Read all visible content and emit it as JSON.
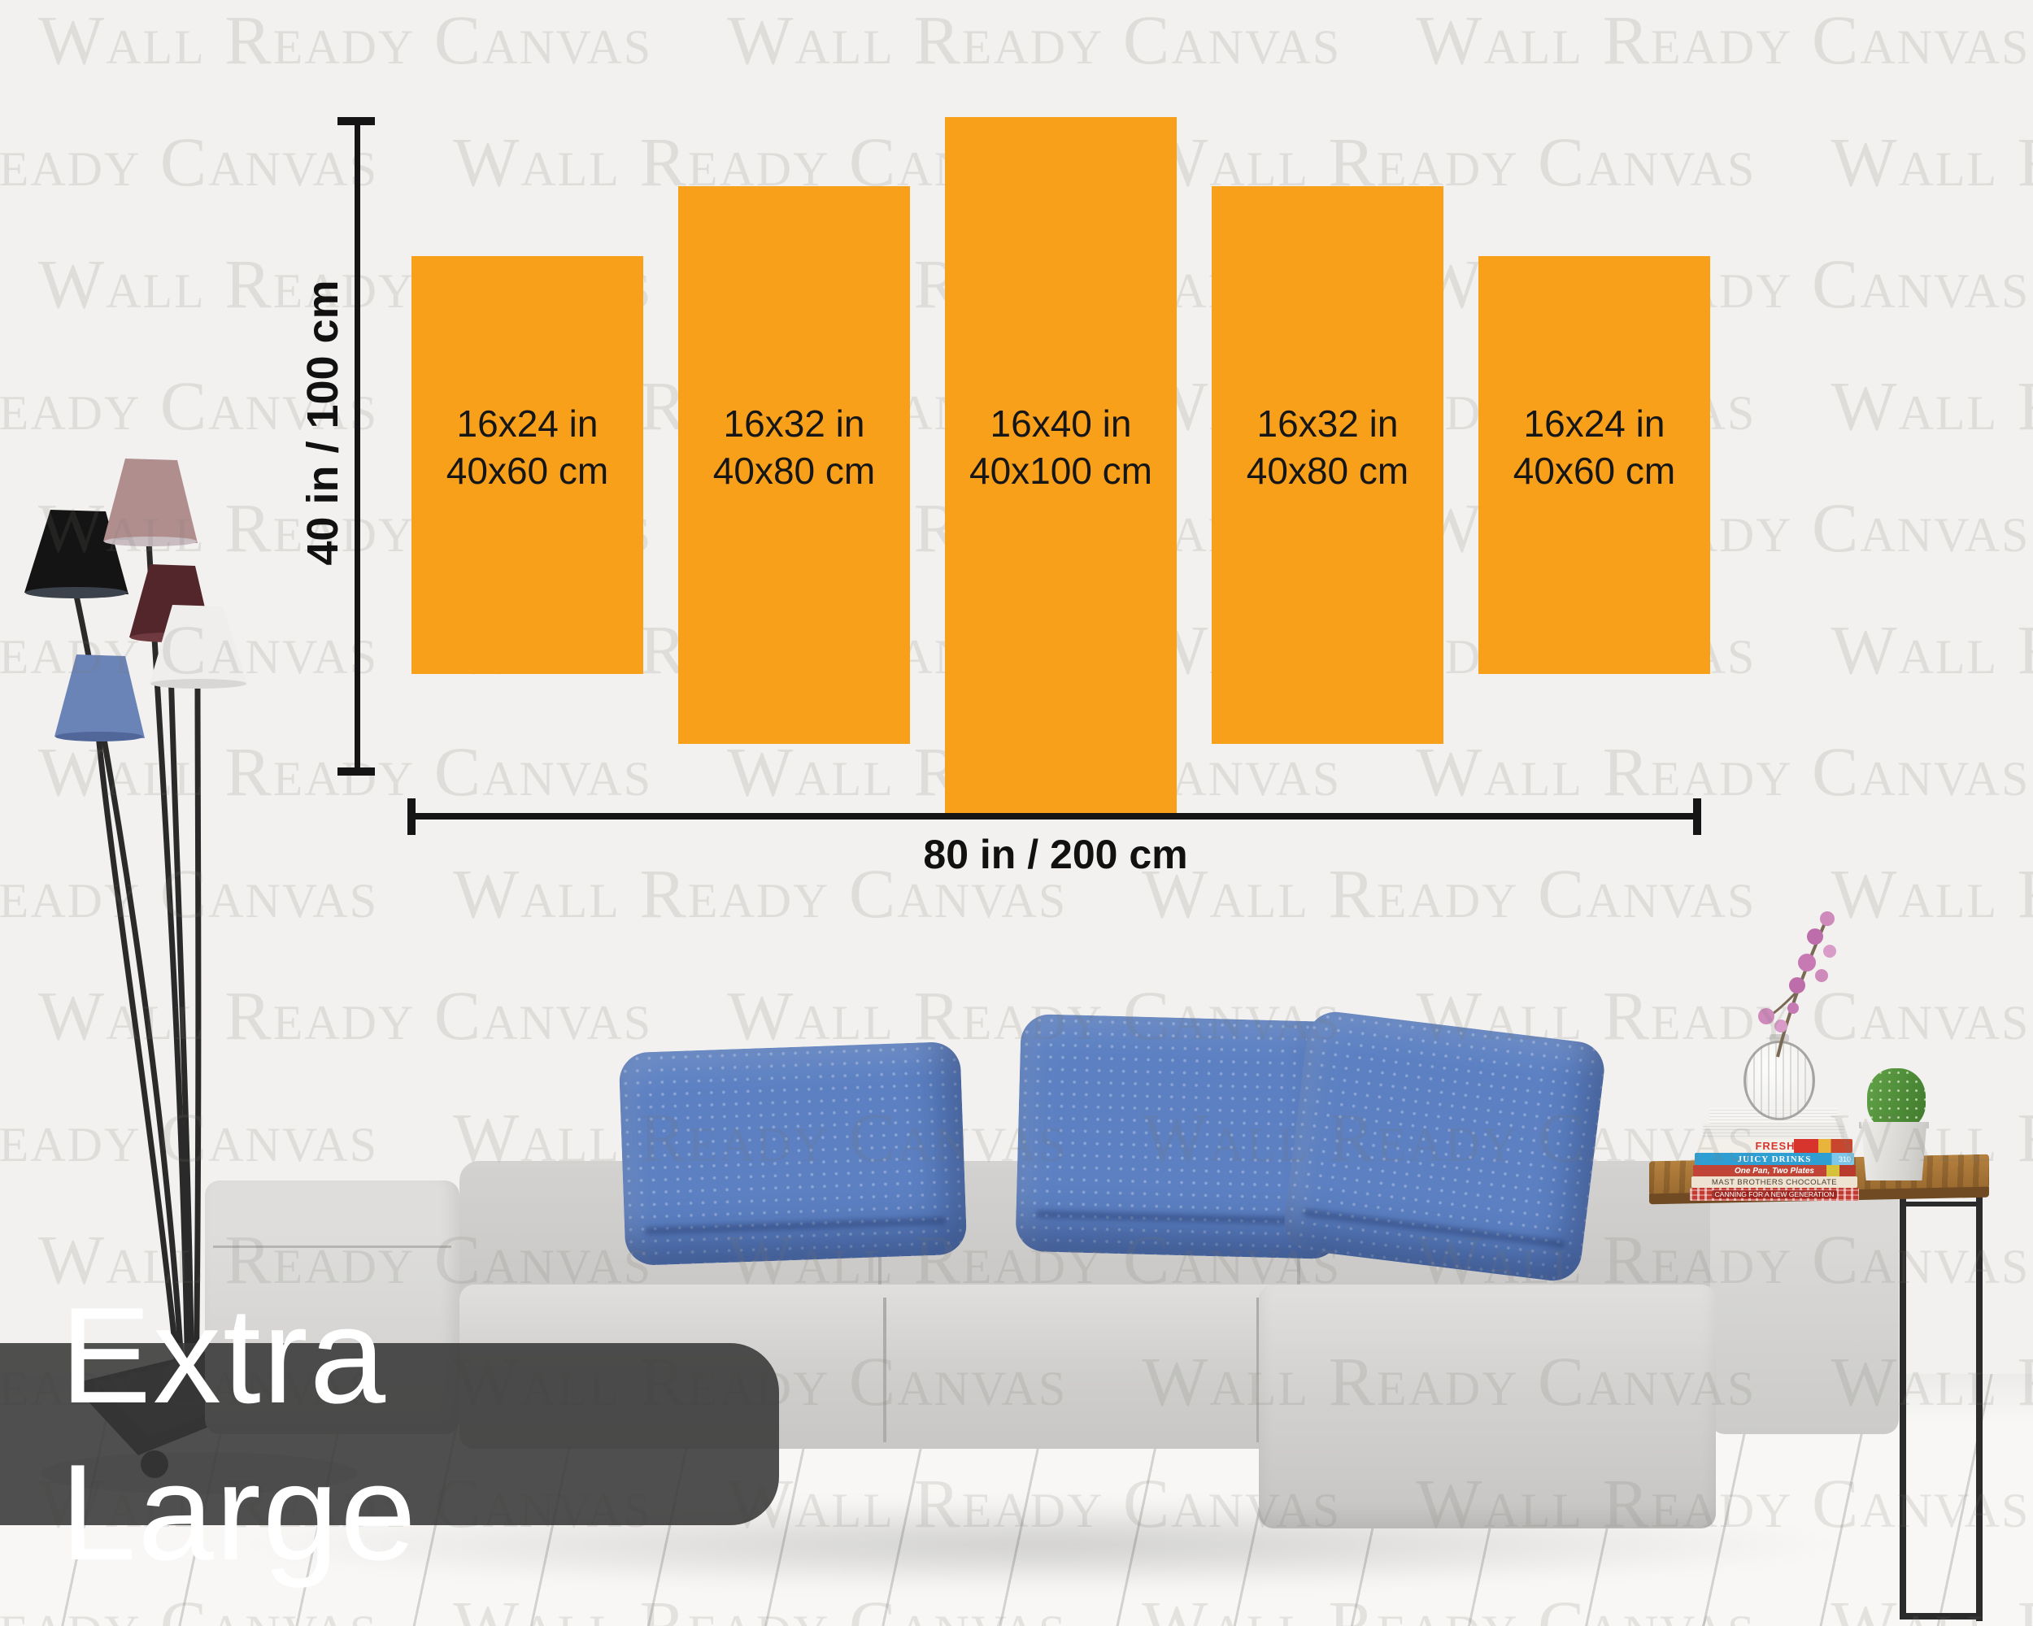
{
  "watermark": {
    "text": "Wall Ready Canvas",
    "color": "#e5e3e1"
  },
  "size_badge": {
    "label": "Extra Large",
    "bg": "#383838",
    "text_color": "#ffffff"
  },
  "diagram": {
    "accent_orange": "#F9A01B",
    "height_label": "40 in / 100 cm",
    "width_label": "80 in / 200 cm",
    "panels": [
      {
        "inches": "16x24 in",
        "cm": "40x60 cm"
      },
      {
        "inches": "16x32 in",
        "cm": "40x80 cm"
      },
      {
        "inches": "16x40 in",
        "cm": "40x100 cm"
      },
      {
        "inches": "16x32 in",
        "cm": "40x80 cm"
      },
      {
        "inches": "16x24 in",
        "cm": "40x60 cm"
      }
    ]
  },
  "scene": {
    "pillow_color": "#5C80C2",
    "sofa_color": "#D3D2D0",
    "wood_color": "#A9743A",
    "lamp_shade_colors": [
      "#141414",
      "#B18E8E",
      "#53262B",
      "#EFEEEC",
      "#6A84B8"
    ],
    "books": {
      "fresh": "FRESH",
      "juicy": "JUICY DRINKS",
      "juicy_badge": "310",
      "onepan": "One Pan, Two Plates",
      "mast": "MAST BROTHERS CHOCOLATE",
      "canning": "CANNING FOR A NEW GENERATION"
    }
  }
}
